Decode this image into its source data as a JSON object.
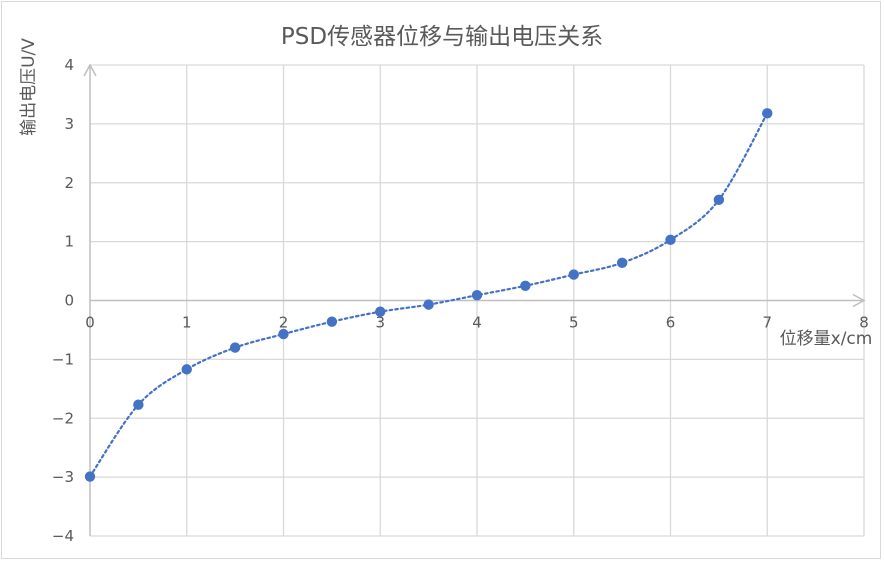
{
  "chart_data": {
    "type": "scatter",
    "title": "PSD传感器位移与输出电压关系",
    "xlabel": "位移量x/cm",
    "ylabel": "输出电压U/V",
    "xlim": [
      0,
      8
    ],
    "ylim": [
      -4,
      4
    ],
    "x_ticks": [
      0,
      1,
      2,
      3,
      4,
      5,
      6,
      7,
      8
    ],
    "y_ticks": [
      -4,
      -3,
      -2,
      -1,
      0,
      1,
      2,
      3,
      4
    ],
    "grid": true,
    "trendline": "dotted smooth",
    "colors": {
      "marker": "#4472c4",
      "grid": "#d9d9d9",
      "text": "#595959"
    },
    "series": [
      {
        "x": [
          0,
          0.5,
          1,
          1.5,
          2,
          2.5,
          3,
          3.5,
          4,
          4.5,
          5,
          5.5,
          6,
          6.5,
          7
        ],
        "values": [
          -2.99,
          -1.77,
          -1.17,
          -0.8,
          -0.57,
          -0.36,
          -0.19,
          -0.07,
          0.09,
          0.25,
          0.44,
          0.64,
          1.03,
          1.71,
          3.18
        ]
      }
    ]
  }
}
